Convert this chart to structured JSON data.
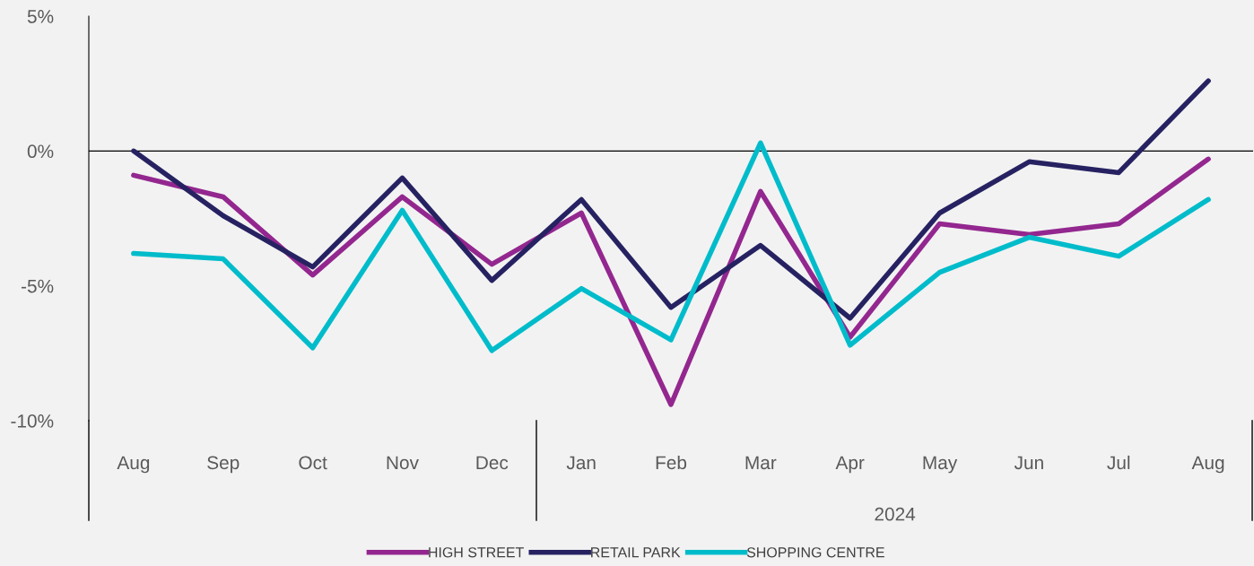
{
  "chart_data": {
    "type": "line",
    "categories": [
      "Aug",
      "Sep",
      "Oct",
      "Nov",
      "Dec",
      "Jan",
      "Feb",
      "Mar",
      "Apr",
      "May",
      "Jun",
      "Jul",
      "Aug"
    ],
    "series": [
      {
        "name": "HIGH STREET",
        "color": "#93278f",
        "values": [
          -0.9,
          -1.7,
          -4.6,
          -1.7,
          -4.2,
          -2.3,
          -9.4,
          -1.5,
          -6.9,
          -2.7,
          -3.1,
          -2.7,
          -0.3
        ]
      },
      {
        "name": "RETAIL PARK",
        "color": "#262262",
        "values": [
          0.0,
          -2.4,
          -4.3,
          -1.0,
          -4.8,
          -1.8,
          -5.8,
          -3.5,
          -6.2,
          -2.3,
          -0.4,
          -0.8,
          2.6
        ]
      },
      {
        "name": "SHOPPING CENTRE",
        "color": "#00bccb",
        "values": [
          -3.8,
          -4.0,
          -7.3,
          -2.2,
          -7.4,
          -5.1,
          -7.0,
          0.3,
          -7.2,
          -4.5,
          -3.2,
          -3.9,
          -1.8
        ]
      }
    ],
    "ylim": [
      -10,
      5
    ],
    "yticks": [
      {
        "value": -10,
        "label": "-10%"
      },
      {
        "value": -5,
        "label": "-5%"
      },
      {
        "value": 0,
        "label": "0%"
      },
      {
        "value": 5,
        "label": "5%"
      }
    ],
    "annotations": [
      "2024"
    ],
    "ref_lines": [
      {
        "axis": "y",
        "value": 0,
        "color": "#000000"
      }
    ],
    "grid": false,
    "legend": "bottom",
    "marker": "none",
    "line_style": "solid"
  }
}
